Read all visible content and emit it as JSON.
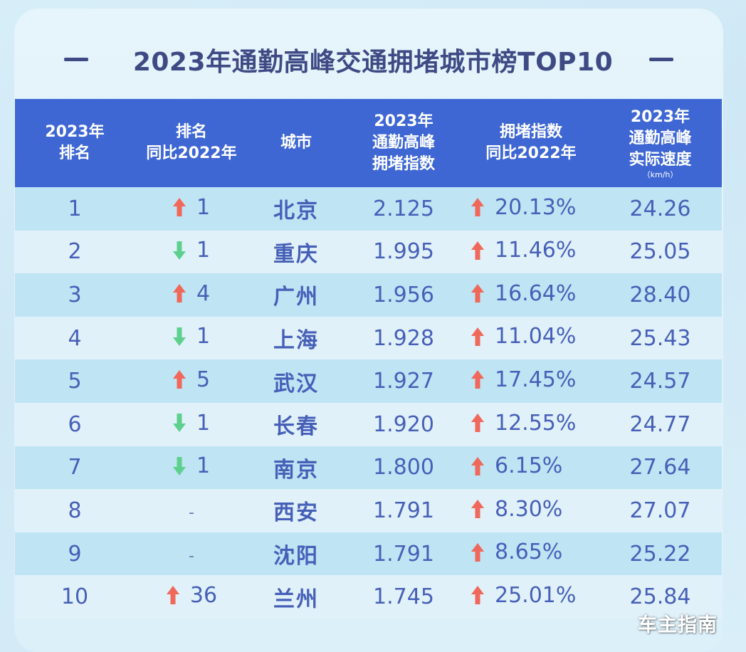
{
  "title": "2023年通勤高峰交通拥堵城市榜TOP10",
  "headers": {
    "rank": [
      "2023年",
      "排名"
    ],
    "rank_change": [
      "排名",
      "同比2022年"
    ],
    "city": "城市",
    "congestion": [
      "2023年",
      "通勤高峰",
      "拥堵指数"
    ],
    "index_change": [
      "拥堵指数",
      "同比2022年"
    ],
    "speed": [
      "2023年",
      "通勤高峰",
      "实际速度"
    ],
    "speed_unit": "（km/h）"
  },
  "colors": {
    "up": "#f0685a",
    "down": "#5ed08e",
    "header_bg": "#3e67d4",
    "text": "#4660b8"
  },
  "rows": [
    {
      "rank": "1",
      "change_dir": "up",
      "change": "1",
      "city": "北京",
      "index": "2.125",
      "index_dir": "up",
      "index_change": "20.13%",
      "speed": "24.26"
    },
    {
      "rank": "2",
      "change_dir": "down",
      "change": "1",
      "city": "重庆",
      "index": "1.995",
      "index_dir": "up",
      "index_change": "11.46%",
      "speed": "25.05"
    },
    {
      "rank": "3",
      "change_dir": "up",
      "change": "4",
      "city": "广州",
      "index": "1.956",
      "index_dir": "up",
      "index_change": "16.64%",
      "speed": "28.40"
    },
    {
      "rank": "4",
      "change_dir": "down",
      "change": "1",
      "city": "上海",
      "index": "1.928",
      "index_dir": "up",
      "index_change": "11.04%",
      "speed": "25.43"
    },
    {
      "rank": "5",
      "change_dir": "up",
      "change": "5",
      "city": "武汉",
      "index": "1.927",
      "index_dir": "up",
      "index_change": "17.45%",
      "speed": "24.57"
    },
    {
      "rank": "6",
      "change_dir": "down",
      "change": "1",
      "city": "长春",
      "index": "1.920",
      "index_dir": "up",
      "index_change": "12.55%",
      "speed": "24.77"
    },
    {
      "rank": "7",
      "change_dir": "down",
      "change": "1",
      "city": "南京",
      "index": "1.800",
      "index_dir": "up",
      "index_change": "6.15%",
      "speed": "27.64"
    },
    {
      "rank": "8",
      "change_dir": "none",
      "change": "-",
      "city": "西安",
      "index": "1.791",
      "index_dir": "up",
      "index_change": "8.30%",
      "speed": "27.07"
    },
    {
      "rank": "9",
      "change_dir": "none",
      "change": "-",
      "city": "沈阳",
      "index": "1.791",
      "index_dir": "up",
      "index_change": "8.65%",
      "speed": "25.22"
    },
    {
      "rank": "10",
      "change_dir": "up",
      "change": "36",
      "city": "兰州",
      "index": "1.745",
      "index_dir": "up",
      "index_change": "25.01%",
      "speed": "25.84"
    }
  ],
  "watermark": "车主指南"
}
